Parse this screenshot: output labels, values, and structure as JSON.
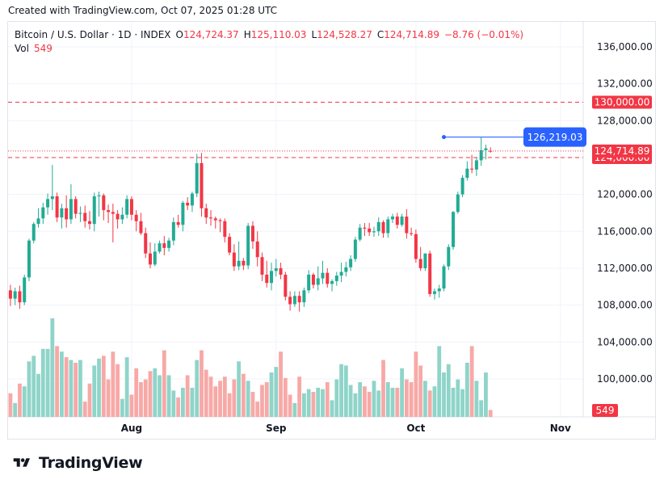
{
  "header": {
    "caption": "Created with TradingView.com, Oct 07, 2025 01:28 UTC"
  },
  "legend": {
    "symbol": "Bitcoin / U.S. Dollar · 1D · INDEX",
    "open_label": "O",
    "open": "124,724.37",
    "high_label": "H",
    "high": "125,110.03",
    "low_label": "L",
    "low": "124,528.27",
    "close_label": "C",
    "close": "124,714.89",
    "change": "−8.76 (−0.01%)",
    "vol_label": "Vol",
    "vol": "549"
  },
  "footer": {
    "brand": "TradingView"
  },
  "colors": {
    "up": "#22ab94",
    "down": "#f23645",
    "up_vol": "#8fd4c9",
    "down_vol": "#f7a9a7",
    "level": "#f23645",
    "marker": "#2962ff",
    "grid": "#f0f3fa",
    "axis_text": "#131722"
  },
  "chart_data": {
    "type": "candlestick",
    "y_axis": {
      "ticks": [
        "136,000.00",
        "132,000.00",
        "128,000.00",
        "124,000.00",
        "120,000.00",
        "116,000.00",
        "112,000.00",
        "108,000.00",
        "104,000.00",
        "100,000.00"
      ],
      "tick_values": [
        136000,
        132000,
        128000,
        124000,
        120000,
        116000,
        112000,
        108000,
        104000,
        100000
      ],
      "range": [
        96400,
        137800
      ],
      "position": "right"
    },
    "x_axis": {
      "ticks": [
        "Aug",
        "Sep",
        "Oct",
        "Nov"
      ],
      "tick_indexes": [
        26,
        57,
        87,
        118
      ]
    },
    "horizontal_levels": [
      {
        "value": 130000,
        "label": "130,000.00",
        "style": "dashed"
      },
      {
        "value": 124000,
        "label": "124,000.00",
        "style": "dashed"
      }
    ],
    "last_price": {
      "value": 124714.89,
      "label": "124,714.89",
      "style": "dotted"
    },
    "annotation": {
      "value": 126219.03,
      "label": "126,219.03",
      "from_index": 93,
      "to_index": 106
    },
    "volume_label": "549",
    "grid": true,
    "candles": [
      {
        "o": 109600,
        "h": 110200,
        "l": 107900,
        "c": 108700
      },
      {
        "o": 108700,
        "h": 109900,
        "l": 108000,
        "c": 109500
      },
      {
        "o": 109500,
        "h": 110100,
        "l": 107600,
        "c": 108300
      },
      {
        "o": 108300,
        "h": 111300,
        "l": 108000,
        "c": 111000
      },
      {
        "o": 111000,
        "h": 115200,
        "l": 110600,
        "c": 115000
      },
      {
        "o": 115000,
        "h": 117000,
        "l": 114700,
        "c": 116800
      },
      {
        "o": 116800,
        "h": 118500,
        "l": 116400,
        "c": 117400
      },
      {
        "o": 117400,
        "h": 119100,
        "l": 116800,
        "c": 118600
      },
      {
        "o": 118600,
        "h": 120100,
        "l": 117800,
        "c": 119500
      },
      {
        "o": 119500,
        "h": 123200,
        "l": 118300,
        "c": 119800
      },
      {
        "o": 119800,
        "h": 120200,
        "l": 117000,
        "c": 117500
      },
      {
        "o": 117500,
        "h": 119000,
        "l": 116300,
        "c": 118500
      },
      {
        "o": 118500,
        "h": 119900,
        "l": 116400,
        "c": 117300
      },
      {
        "o": 117300,
        "h": 121100,
        "l": 116800,
        "c": 119500
      },
      {
        "o": 119500,
        "h": 119800,
        "l": 117400,
        "c": 117900
      },
      {
        "o": 117900,
        "h": 118700,
        "l": 117000,
        "c": 118000
      },
      {
        "o": 118000,
        "h": 118800,
        "l": 116400,
        "c": 117100
      },
      {
        "o": 117100,
        "h": 118200,
        "l": 116200,
        "c": 116800
      },
      {
        "o": 116800,
        "h": 120200,
        "l": 116000,
        "c": 119800
      },
      {
        "o": 119800,
        "h": 120300,
        "l": 117600,
        "c": 119900
      },
      {
        "o": 119900,
        "h": 120100,
        "l": 117200,
        "c": 118300
      },
      {
        "o": 118300,
        "h": 118900,
        "l": 116900,
        "c": 118100
      },
      {
        "o": 118100,
        "h": 119000,
        "l": 114800,
        "c": 117900
      },
      {
        "o": 117900,
        "h": 118300,
        "l": 116300,
        "c": 117300
      },
      {
        "o": 117300,
        "h": 118600,
        "l": 116800,
        "c": 117800
      },
      {
        "o": 117800,
        "h": 119900,
        "l": 117400,
        "c": 119500
      },
      {
        "o": 119500,
        "h": 119800,
        "l": 117200,
        "c": 117800
      },
      {
        "o": 117800,
        "h": 118300,
        "l": 116000,
        "c": 117100
      },
      {
        "o": 117100,
        "h": 118000,
        "l": 115600,
        "c": 115800
      },
      {
        "o": 115800,
        "h": 116400,
        "l": 113100,
        "c": 113600
      },
      {
        "o": 113600,
        "h": 114800,
        "l": 112000,
        "c": 112400
      },
      {
        "o": 112400,
        "h": 114700,
        "l": 112200,
        "c": 113800
      },
      {
        "o": 113800,
        "h": 115000,
        "l": 113600,
        "c": 114700
      },
      {
        "o": 114700,
        "h": 115500,
        "l": 113400,
        "c": 114200
      },
      {
        "o": 114200,
        "h": 115300,
        "l": 113800,
        "c": 115000
      },
      {
        "o": 115000,
        "h": 117500,
        "l": 114500,
        "c": 117000
      },
      {
        "o": 117000,
        "h": 117800,
        "l": 116400,
        "c": 116700
      },
      {
        "o": 116700,
        "h": 119300,
        "l": 116000,
        "c": 119100
      },
      {
        "o": 119100,
        "h": 119700,
        "l": 118300,
        "c": 118800
      },
      {
        "o": 118800,
        "h": 120300,
        "l": 118100,
        "c": 120100
      },
      {
        "o": 120100,
        "h": 124400,
        "l": 119700,
        "c": 123400
      },
      {
        "o": 123400,
        "h": 124500,
        "l": 117600,
        "c": 118500
      },
      {
        "o": 118500,
        "h": 119000,
        "l": 116800,
        "c": 117500
      },
      {
        "o": 117500,
        "h": 118300,
        "l": 116600,
        "c": 117400
      },
      {
        "o": 117400,
        "h": 117600,
        "l": 116300,
        "c": 117200
      },
      {
        "o": 117200,
        "h": 117400,
        "l": 115900,
        "c": 117100
      },
      {
        "o": 117100,
        "h": 117400,
        "l": 114800,
        "c": 115400
      },
      {
        "o": 115400,
        "h": 115800,
        "l": 113400,
        "c": 113700
      },
      {
        "o": 113700,
        "h": 114600,
        "l": 111700,
        "c": 112200
      },
      {
        "o": 112200,
        "h": 114900,
        "l": 111800,
        "c": 112800
      },
      {
        "o": 112800,
        "h": 113100,
        "l": 111800,
        "c": 112300
      },
      {
        "o": 112300,
        "h": 116900,
        "l": 111900,
        "c": 116600
      },
      {
        "o": 116600,
        "h": 117100,
        "l": 114100,
        "c": 114900
      },
      {
        "o": 114900,
        "h": 116000,
        "l": 112200,
        "c": 113200
      },
      {
        "o": 113200,
        "h": 113700,
        "l": 110600,
        "c": 111300
      },
      {
        "o": 111300,
        "h": 112800,
        "l": 109900,
        "c": 110400
      },
      {
        "o": 110400,
        "h": 112600,
        "l": 109600,
        "c": 111700
      },
      {
        "o": 111700,
        "h": 113000,
        "l": 111100,
        "c": 112000
      },
      {
        "o": 112000,
        "h": 112600,
        "l": 110800,
        "c": 111300
      },
      {
        "o": 111300,
        "h": 111600,
        "l": 108500,
        "c": 108900
      },
      {
        "o": 108900,
        "h": 109500,
        "l": 107400,
        "c": 108100
      },
      {
        "o": 108100,
        "h": 109500,
        "l": 107800,
        "c": 109000
      },
      {
        "o": 109000,
        "h": 109500,
        "l": 107300,
        "c": 108300
      },
      {
        "o": 108300,
        "h": 109900,
        "l": 107800,
        "c": 109600
      },
      {
        "o": 109600,
        "h": 111800,
        "l": 109300,
        "c": 111300
      },
      {
        "o": 111300,
        "h": 111500,
        "l": 109800,
        "c": 110200
      },
      {
        "o": 110200,
        "h": 112200,
        "l": 109600,
        "c": 110900
      },
      {
        "o": 110900,
        "h": 112800,
        "l": 110300,
        "c": 111500
      },
      {
        "o": 111500,
        "h": 112000,
        "l": 109900,
        "c": 110300
      },
      {
        "o": 110300,
        "h": 110800,
        "l": 109500,
        "c": 110600
      },
      {
        "o": 110600,
        "h": 111600,
        "l": 110100,
        "c": 111200
      },
      {
        "o": 111200,
        "h": 112600,
        "l": 110500,
        "c": 111600
      },
      {
        "o": 111600,
        "h": 112700,
        "l": 111100,
        "c": 112100
      },
      {
        "o": 112100,
        "h": 113400,
        "l": 111700,
        "c": 113000
      },
      {
        "o": 113000,
        "h": 115400,
        "l": 112700,
        "c": 115100
      },
      {
        "o": 115100,
        "h": 116800,
        "l": 114900,
        "c": 116400
      },
      {
        "o": 116400,
        "h": 116900,
        "l": 115500,
        "c": 116300
      },
      {
        "o": 116300,
        "h": 116900,
        "l": 115500,
        "c": 115900
      },
      {
        "o": 115900,
        "h": 116500,
        "l": 115400,
        "c": 116000
      },
      {
        "o": 116000,
        "h": 117500,
        "l": 115500,
        "c": 117000
      },
      {
        "o": 117000,
        "h": 117200,
        "l": 115300,
        "c": 115800
      },
      {
        "o": 115800,
        "h": 117600,
        "l": 115300,
        "c": 117300
      },
      {
        "o": 117300,
        "h": 117900,
        "l": 116900,
        "c": 117600
      },
      {
        "o": 117600,
        "h": 118000,
        "l": 116300,
        "c": 116700
      },
      {
        "o": 116700,
        "h": 117900,
        "l": 116500,
        "c": 117600
      },
      {
        "o": 117600,
        "h": 118400,
        "l": 115200,
        "c": 115800
      },
      {
        "o": 115800,
        "h": 116400,
        "l": 115500,
        "c": 115700
      },
      {
        "o": 115700,
        "h": 116200,
        "l": 112600,
        "c": 113000
      },
      {
        "o": 113000,
        "h": 114300,
        "l": 111700,
        "c": 112000
      },
      {
        "o": 112000,
        "h": 113600,
        "l": 111700,
        "c": 113600
      },
      {
        "o": 113600,
        "h": 113900,
        "l": 108900,
        "c": 109200
      },
      {
        "o": 109200,
        "h": 109800,
        "l": 108600,
        "c": 109500
      },
      {
        "o": 109500,
        "h": 110200,
        "l": 108800,
        "c": 109800
      },
      {
        "o": 109800,
        "h": 112400,
        "l": 109500,
        "c": 112200
      },
      {
        "o": 112200,
        "h": 114600,
        "l": 111800,
        "c": 114300
      },
      {
        "o": 114300,
        "h": 118200,
        "l": 114000,
        "c": 118100
      },
      {
        "o": 118100,
        "h": 120300,
        "l": 117900,
        "c": 120000
      },
      {
        "o": 120000,
        "h": 122100,
        "l": 119700,
        "c": 121800
      },
      {
        "o": 121800,
        "h": 123600,
        "l": 121500,
        "c": 122800
      },
      {
        "o": 122800,
        "h": 124300,
        "l": 122300,
        "c": 122700
      },
      {
        "o": 122700,
        "h": 124000,
        "l": 122000,
        "c": 123700
      },
      {
        "o": 123700,
        "h": 126219,
        "l": 123100,
        "c": 124800
      },
      {
        "o": 124800,
        "h": 125400,
        "l": 123800,
        "c": 125000
      },
      {
        "o": 124724.37,
        "h": 125110.03,
        "l": 124528.27,
        "c": 124714.89
      }
    ],
    "volumes": [
      17,
      10,
      24,
      22,
      40,
      44,
      31,
      49,
      49,
      71,
      51,
      47,
      43,
      41,
      39,
      41,
      11,
      24,
      37,
      42,
      44,
      27,
      47,
      38,
      13,
      43,
      16,
      35,
      25,
      27,
      33,
      35,
      30,
      48,
      30,
      19,
      14,
      21,
      30,
      21,
      41,
      48,
      34,
      29,
      22,
      26,
      29,
      17,
      27,
      40,
      31,
      26,
      18,
      11,
      23,
      25,
      32,
      36,
      47,
      28,
      16,
      10,
      29,
      17,
      20,
      18,
      21,
      20,
      25,
      12,
      27,
      38,
      37,
      23,
      17,
      25,
      22,
      18,
      26,
      19,
      41,
      25,
      21,
      21,
      35,
      27,
      25,
      47,
      37,
      26,
      19,
      22,
      51,
      32,
      38,
      21,
      27,
      20,
      39,
      51,
      26,
      12,
      32,
      5
    ]
  }
}
